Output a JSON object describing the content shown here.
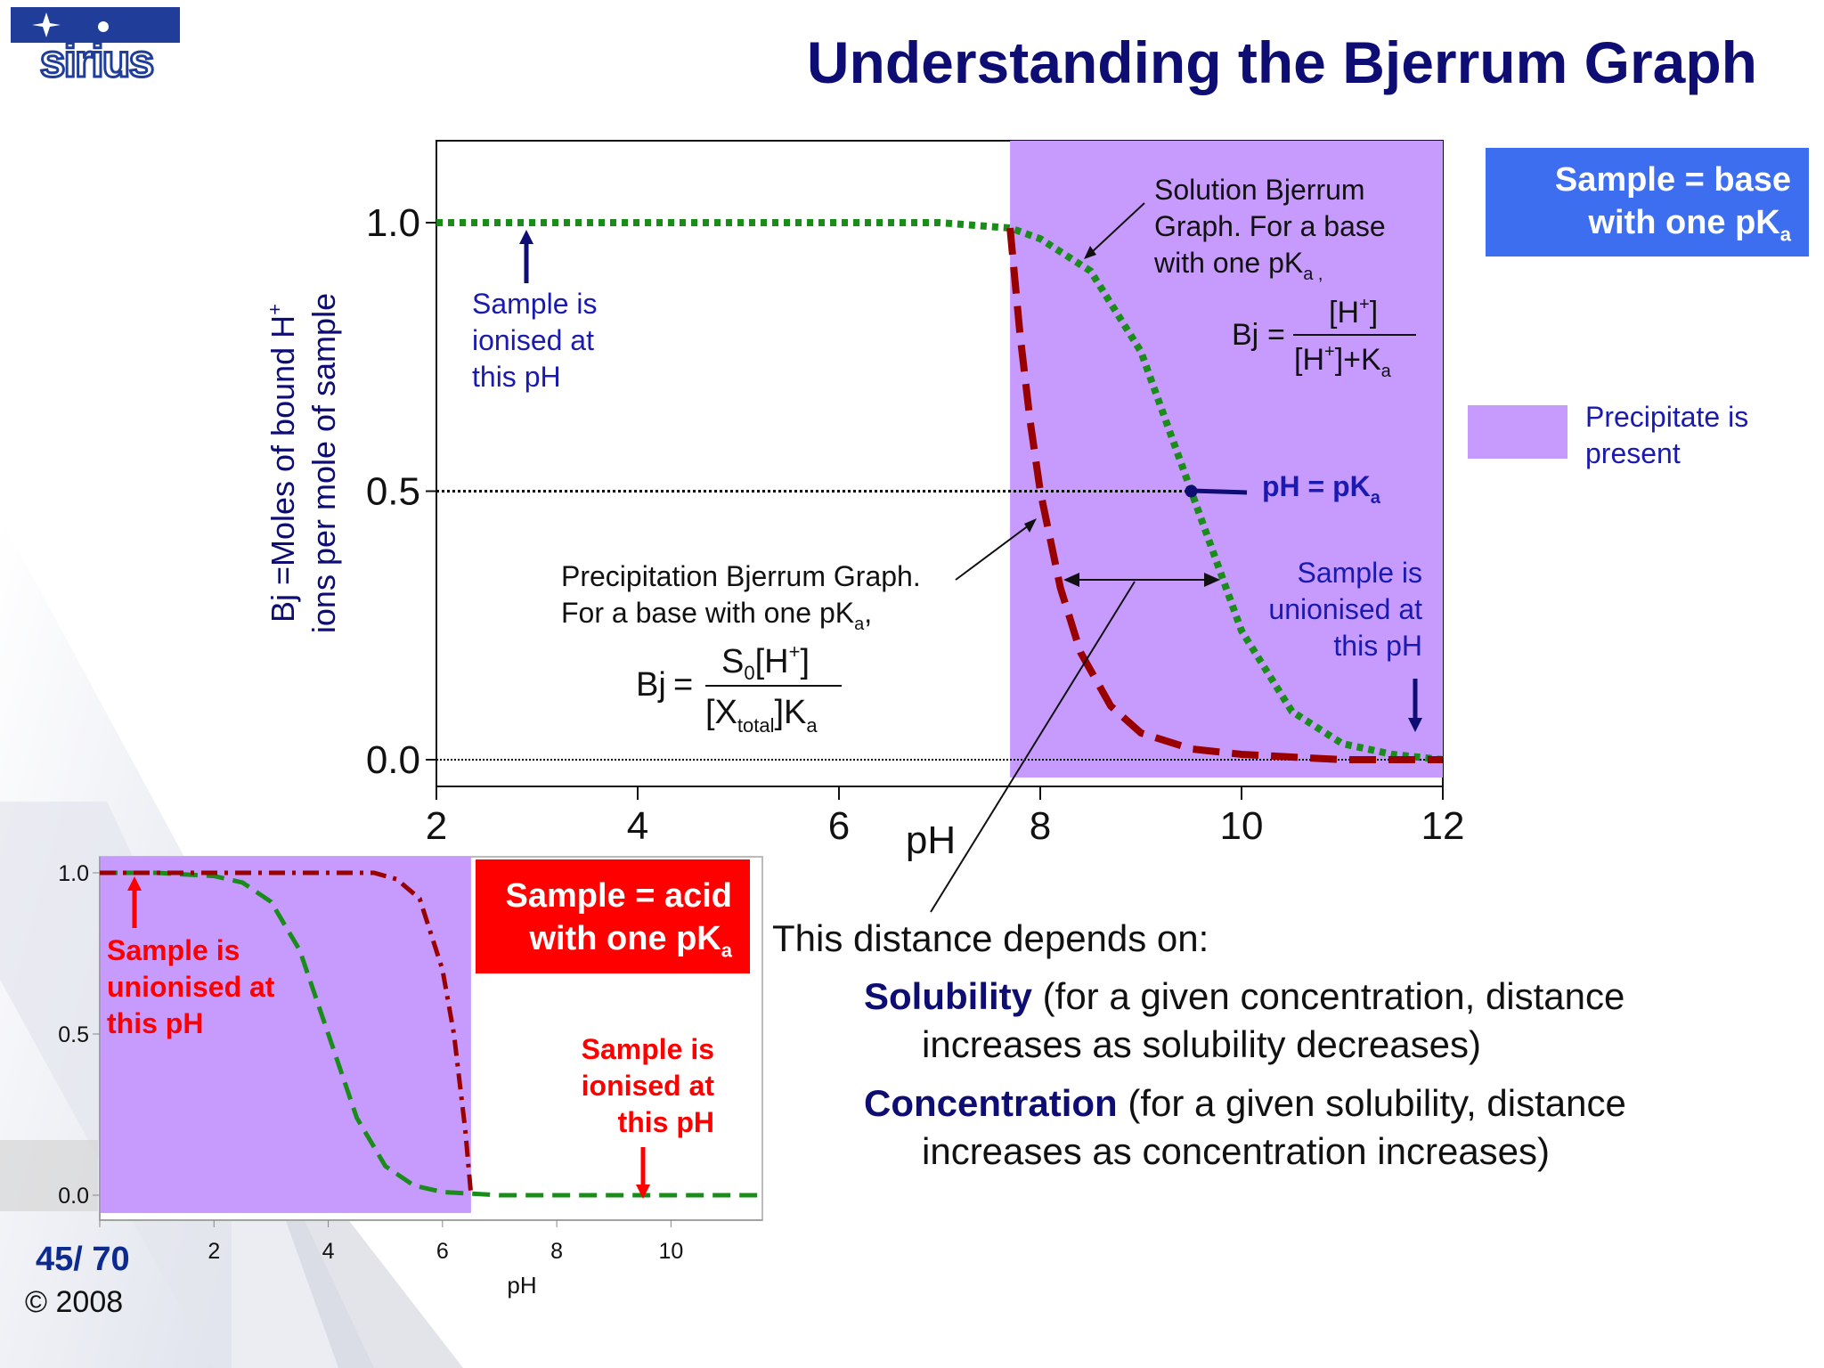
{
  "logo": {
    "text": "sirius"
  },
  "title": "Understanding the Bjerrum Graph",
  "base_box": {
    "line1": "Sample = base",
    "line2": "with one pK",
    "sub": "a"
  },
  "acid_box": {
    "line1": "Sample = acid",
    "line2": "with one pK",
    "sub": "a"
  },
  "legend": {
    "line1": "Precipitate is",
    "line2": "present",
    "color": "#c79bfd"
  },
  "main_annotations": {
    "ionised": [
      "Sample is",
      "ionised at",
      "this pH"
    ],
    "unionised": [
      "Sample is",
      "unionised at",
      "this pH"
    ],
    "solution": [
      "Solution Bjerrum",
      "Graph. For a base",
      "with one pK"
    ],
    "precip": [
      "Precipitation Bjerrum Graph.",
      "For a base with one pK"
    ],
    "pka_label": "pH = pK",
    "formula_sol_lhs": "Bj",
    "formula_precip_lhs": "Bj"
  },
  "inset_annotations": {
    "unionised": [
      "Sample is",
      "unionised at",
      "this pH"
    ],
    "ionised": [
      "Sample is",
      "ionised at",
      "this pH"
    ]
  },
  "distance": {
    "heading": "This distance depends on:",
    "items": [
      {
        "bold": "Solubility",
        "rest": " (for a given concentration, distance",
        "cont": "increases as solubility decreases)"
      },
      {
        "bold": "Concentration",
        "rest": " (for a given solubility, distance",
        "cont": "increases as concentration increases)"
      }
    ]
  },
  "page": "45/ 70",
  "copyright": "© 2008",
  "colors": {
    "title": "#0d0d73",
    "precipitate": "#c79bfd",
    "solution_curve": "#1a8c1a",
    "precip_curve": "#990000",
    "base_box": "#3d6ef0",
    "acid_box": "#ff0000"
  },
  "chart_data": [
    {
      "type": "line",
      "xlabel": "pH",
      "ylabel": "Bj =Moles of bound H+ ions per mole of sample",
      "xlim": [
        2,
        12
      ],
      "ylim": [
        0,
        1
      ],
      "xticks": [
        "2",
        "4",
        "6",
        "8",
        "10",
        "12"
      ],
      "yticks": [
        "0.0",
        "0.5",
        "1.0"
      ],
      "precipitate_region_x": [
        7.7,
        12
      ],
      "reference_lines": [
        0.5,
        0.0
      ],
      "pKa": 9.5,
      "series": [
        {
          "x": [
            2,
            3,
            4,
            5,
            6,
            7,
            7.7,
            8,
            8.5,
            9,
            9.5,
            10,
            10.5,
            11,
            11.5,
            12
          ],
          "y": [
            1.0,
            1.0,
            1.0,
            1.0,
            1.0,
            1.0,
            0.99,
            0.97,
            0.91,
            0.76,
            0.5,
            0.24,
            0.09,
            0.03,
            0.01,
            0.0
          ]
        },
        {
          "x": [
            7.7,
            7.8,
            7.9,
            8.0,
            8.2,
            8.4,
            8.7,
            9.0,
            9.5,
            10.0,
            11.0,
            12.0
          ],
          "y": [
            0.99,
            0.79,
            0.63,
            0.5,
            0.32,
            0.2,
            0.1,
            0.05,
            0.02,
            0.01,
            0.0,
            0.0
          ]
        }
      ]
    },
    {
      "type": "line",
      "xlabel": "pH",
      "ylabel": "",
      "xlim": [
        0,
        11.6
      ],
      "ylim": [
        0,
        1
      ],
      "xticks": [
        "2",
        "4",
        "6",
        "8",
        "10"
      ],
      "yticks": [
        "0.0",
        "0.5",
        "1.0"
      ],
      "precipitate_region_x": [
        0,
        6.5
      ],
      "series": [
        {
          "x": [
            0,
            1,
            2,
            2.5,
            3,
            3.5,
            4,
            4.5,
            5,
            5.5,
            6,
            7,
            8,
            9,
            10,
            11.6
          ],
          "y": [
            1.0,
            1.0,
            0.99,
            0.97,
            0.91,
            0.76,
            0.5,
            0.24,
            0.09,
            0.03,
            0.01,
            0.0,
            0.0,
            0.0,
            0.0,
            0.0
          ]
        },
        {
          "x": [
            0,
            2,
            4,
            4.8,
            5.2,
            5.6,
            6.0,
            6.2,
            6.4,
            6.5
          ],
          "y": [
            1.0,
            1.0,
            1.0,
            1.0,
            0.98,
            0.92,
            0.7,
            0.5,
            0.2,
            0.0
          ]
        }
      ]
    }
  ]
}
